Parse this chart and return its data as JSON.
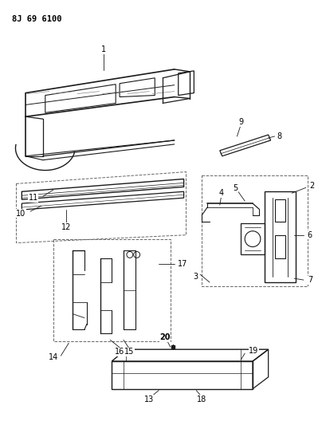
{
  "title": "8J 69 6100",
  "background_color": "#ffffff",
  "line_color": "#1a1a1a",
  "label_color": "#000000",
  "fig_width": 3.99,
  "fig_height": 5.33,
  "dpi": 100
}
